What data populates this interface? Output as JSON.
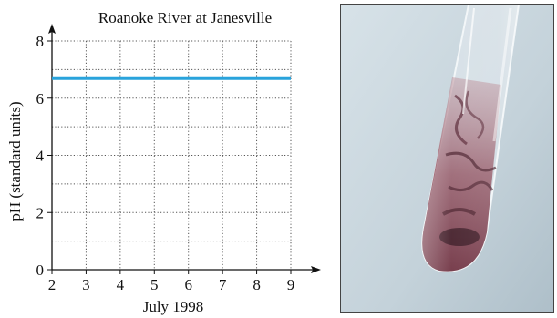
{
  "chart_data": {
    "type": "line",
    "title": "Roanoke River at Janesville",
    "xlabel": "July 1998",
    "ylabel": "pH (standard units)",
    "xlim": [
      2,
      9
    ],
    "ylim": [
      0,
      8
    ],
    "x_ticks": [
      2,
      3,
      4,
      5,
      6,
      7,
      8,
      9
    ],
    "y_ticks": [
      0,
      2,
      4,
      6,
      8
    ],
    "grid": true,
    "grid_style": "dotted",
    "series": [
      {
        "color": "#29a3dc",
        "x": [
          2,
          9
        ],
        "values": [
          6.7,
          6.7
        ]
      }
    ]
  },
  "photo": {
    "subject": "test-tube-icon",
    "background_color": "#c9d6dd",
    "liquid_color": "#7a3a4a"
  }
}
